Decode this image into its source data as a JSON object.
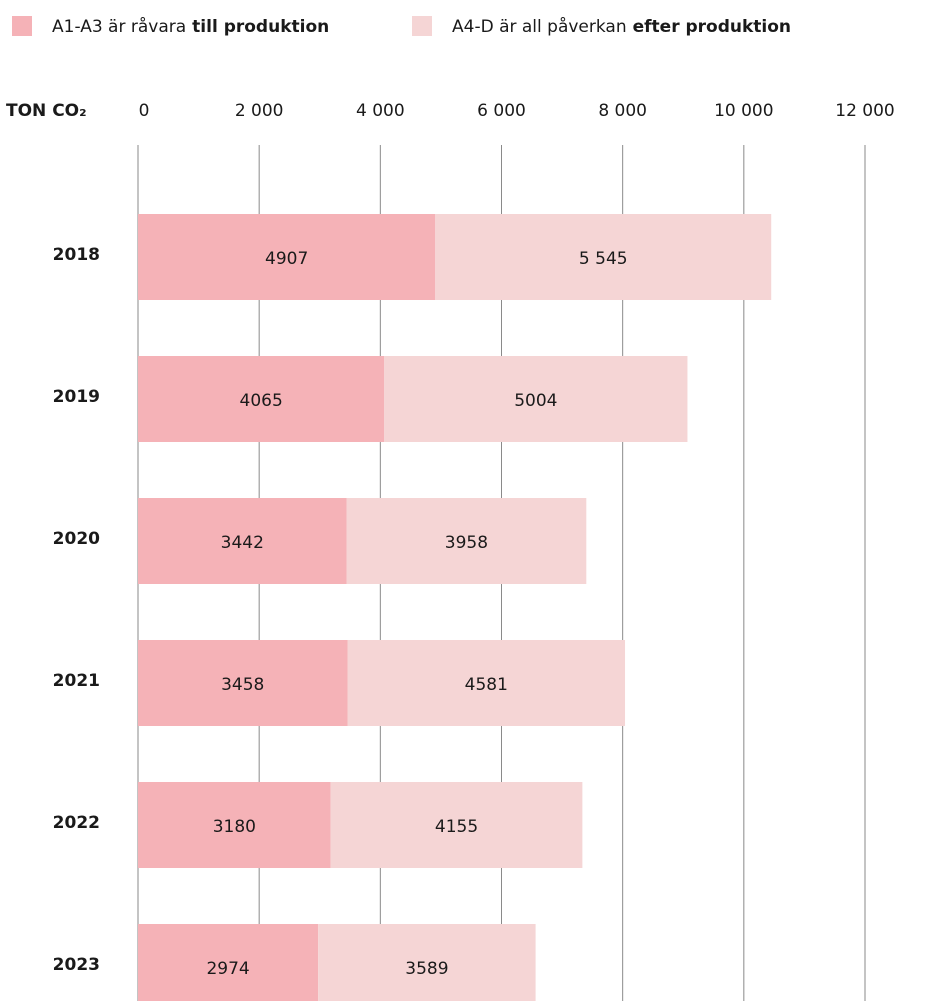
{
  "chart_data": {
    "type": "stacked-barh",
    "axis_label": "TON CO₂",
    "categories": [
      "2018",
      "2019",
      "2020",
      "2021",
      "2022",
      "2023"
    ],
    "series": [
      {
        "name": "A1-A3 är råvara",
        "name_bold": "till produktion",
        "color": "#f5b2b7",
        "values": [
          4907,
          4065,
          3442,
          3458,
          3180,
          2974
        ]
      },
      {
        "name": "A4-D är all påverkan",
        "name_bold": "efter produktion",
        "color": "#f5d5d5",
        "values": [
          5545,
          5004,
          3958,
          4581,
          4155,
          3589
        ],
        "value_labels": [
          "5 545",
          "5004",
          "3958",
          "4581",
          "4155",
          "3589"
        ]
      }
    ],
    "xlim": [
      0,
      12000
    ],
    "xticks": [
      0,
      {
        "value": 2000,
        "label": "2 000"
      },
      {
        "value": 4000,
        "label": "4 000"
      },
      {
        "value": 6000,
        "label": "6 000"
      },
      {
        "value": 8000,
        "label": "8 000"
      },
      {
        "value": 10000,
        "label": "10 000"
      },
      {
        "value": 12000,
        "label": "12 000"
      }
    ],
    "grid": true
  }
}
